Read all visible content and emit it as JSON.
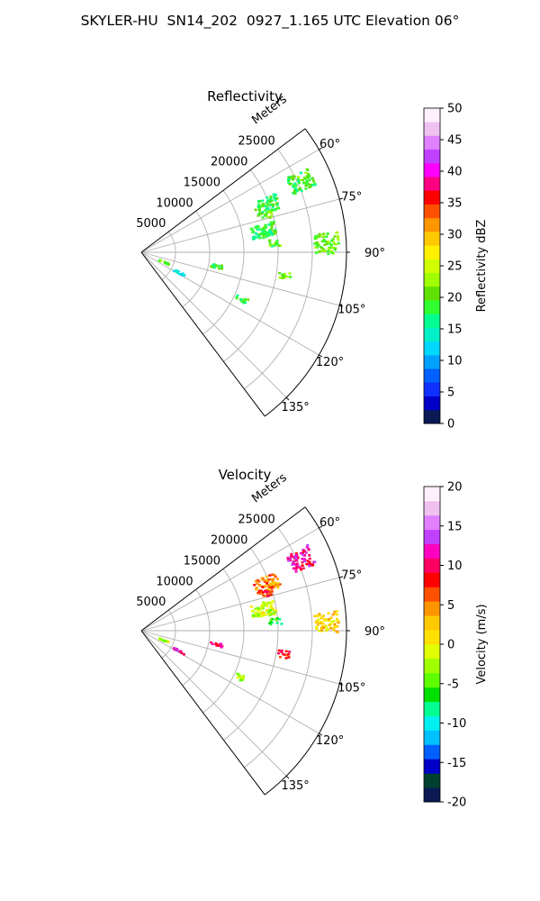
{
  "figure": {
    "title": "SKYLER-HU  SN14_202  0927_1.165 UTC Elevation 06°"
  },
  "colors": {
    "grid": "#b0b0b0",
    "spine": "#000000",
    "reflectivity_cmap": [
      "#0b1a55",
      "#0000c8",
      "#1030ff",
      "#0060ff",
      "#00a0ff",
      "#00d8ff",
      "#00f0c8",
      "#00ff90",
      "#30ff30",
      "#60e000",
      "#a0ff00",
      "#d0ff00",
      "#fff000",
      "#ffc800",
      "#ff9600",
      "#ff5000",
      "#ff0000",
      "#ff0080",
      "#ff00ff",
      "#c040ff",
      "#e080ff",
      "#f0c0f0",
      "#fff0ff"
    ],
    "velocity_cmap": [
      "#0b1a55",
      "#004030",
      "#0000c8",
      "#0060ff",
      "#00c0ff",
      "#00f0f0",
      "#00ff90",
      "#00e000",
      "#60ff00",
      "#a0ff00",
      "#e0ff00",
      "#ffe000",
      "#ffc800",
      "#ff9600",
      "#ff5000",
      "#ff0000",
      "#ff0060",
      "#ff00c0",
      "#c040ff",
      "#e080ff",
      "#f0c0f0",
      "#fff0ff"
    ]
  },
  "chart_data": [
    {
      "type": "heatmap",
      "projection": "polar sector (PPI)",
      "title": "Reflectivity",
      "radial_label": "Meters",
      "r_ticks": [
        "5000",
        "10000",
        "15000",
        "20000",
        "25000"
      ],
      "r_max": 30000,
      "theta_ticks": [
        "60°",
        "75°",
        "90°",
        "105°",
        "120°",
        "135°"
      ],
      "theta_range_deg": [
        53,
        143
      ],
      "colorbar": {
        "label": "Reflectivity dBZ",
        "min": 0,
        "max": 50,
        "ticks": [
          "0",
          "5",
          "10",
          "15",
          "20",
          "25",
          "30",
          "35",
          "40",
          "45",
          "50"
        ]
      },
      "echoes": [
        {
          "az_deg": 69,
          "range_m": 19500,
          "value": 18
        },
        {
          "az_deg": 65.5,
          "range_m": 25500,
          "value": 19
        },
        {
          "az_deg": 73,
          "range_m": 19000,
          "value": 21
        },
        {
          "az_deg": 79.5,
          "range_m": 18000,
          "value": 18
        },
        {
          "az_deg": 87,
          "range_m": 27000,
          "value": 21
        },
        {
          "az_deg": 85.5,
          "range_m": 19500,
          "value": 20
        },
        {
          "az_deg": 100,
          "range_m": 11000,
          "value": 19
        },
        {
          "az_deg": 112,
          "range_m": 3500,
          "value": 20
        },
        {
          "az_deg": 118,
          "range_m": 6000,
          "value": 13
        },
        {
          "az_deg": 115,
          "range_m": 16000,
          "value": 19
        },
        {
          "az_deg": 99,
          "range_m": 21000,
          "value": 21
        }
      ]
    },
    {
      "type": "heatmap",
      "projection": "polar sector (PPI)",
      "title": "Velocity",
      "radial_label": "Meters",
      "r_ticks": [
        "5000",
        "10000",
        "15000",
        "20000",
        "25000"
      ],
      "r_max": 30000,
      "theta_ticks": [
        "60°",
        "75°",
        "90°",
        "105°",
        "120°",
        "135°"
      ],
      "theta_range_deg": [
        53,
        143
      ],
      "colorbar": {
        "label": "Velocity (m/s)",
        "min": -20,
        "max": 20,
        "ticks": [
          "-20",
          "-15",
          "-10",
          "-5",
          "0",
          "5",
          "10",
          "15",
          "20"
        ]
      },
      "echoes": [
        {
          "az_deg": 69,
          "range_m": 19500,
          "value": 5
        },
        {
          "az_deg": 65.5,
          "range_m": 25500,
          "value": 11
        },
        {
          "az_deg": 73,
          "range_m": 19000,
          "value": 8
        },
        {
          "az_deg": 79.5,
          "range_m": 18000,
          "value": -2
        },
        {
          "az_deg": 87,
          "range_m": 27000,
          "value": 2
        },
        {
          "az_deg": 85.5,
          "range_m": 19500,
          "value": -6
        },
        {
          "az_deg": 100,
          "range_m": 11000,
          "value": 10
        },
        {
          "az_deg": 112,
          "range_m": 3500,
          "value": -2
        },
        {
          "az_deg": 118,
          "range_m": 6000,
          "value": 11
        },
        {
          "az_deg": 115,
          "range_m": 16000,
          "value": -3
        },
        {
          "az_deg": 99,
          "range_m": 21000,
          "value": 9
        }
      ]
    }
  ]
}
